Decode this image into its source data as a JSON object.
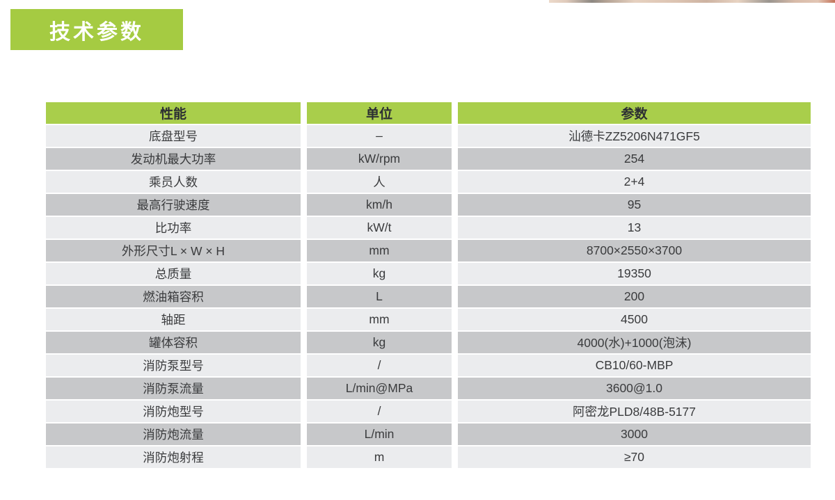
{
  "page": {
    "title": "技术参数"
  },
  "colors": {
    "accent_green": "#a5cb42",
    "header_green": "#a9ce4b",
    "row_light": "#ebecee",
    "row_dark": "#c7c8ca",
    "header_text": "#2c2f33",
    "cell_text": "#3a3b3d"
  },
  "table": {
    "headers": [
      "性能",
      "单位",
      "参数"
    ],
    "rows": [
      [
        "底盘型号",
        "–",
        "汕德卡ZZ5206N471GF5"
      ],
      [
        "发动机最大功率",
        "kW/rpm",
        "254"
      ],
      [
        "乘员人数",
        "人",
        "2+4"
      ],
      [
        "最高行驶速度",
        "km/h",
        "95"
      ],
      [
        "比功率",
        "kW/t",
        "13"
      ],
      [
        "外形尺寸L × W × H",
        "mm",
        "8700×2550×3700"
      ],
      [
        "总质量",
        "kg",
        "19350"
      ],
      [
        "燃油箱容积",
        "L",
        "200"
      ],
      [
        "轴距",
        "mm",
        "4500"
      ],
      [
        "罐体容积",
        "kg",
        "4000(水)+1000(泡沫)"
      ],
      [
        "消防泵型号",
        "/",
        "CB10/60-MBP"
      ],
      [
        "消防泵流量",
        "L/min@MPa",
        "3600@1.0"
      ],
      [
        "消防炮型号",
        "/",
        "阿密龙PLD8/48B-5177"
      ],
      [
        "消防炮流量",
        "L/min",
        "3000"
      ],
      [
        "消防炮射程",
        "m",
        "≥70"
      ]
    ]
  }
}
